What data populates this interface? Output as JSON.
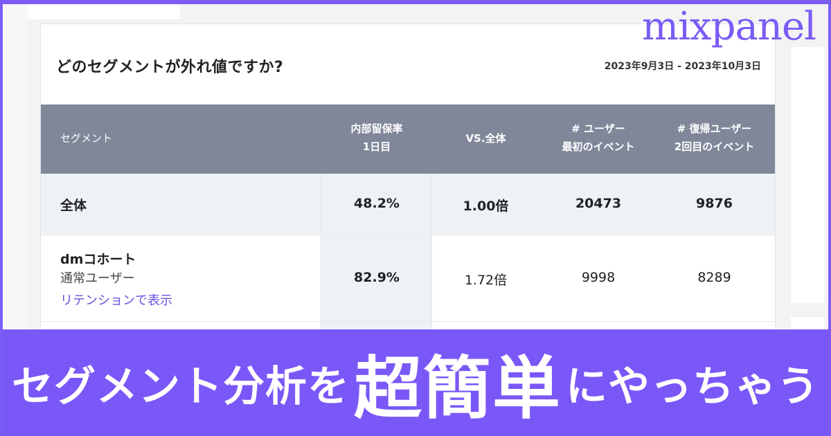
{
  "brand": {
    "logo": "mixpanel",
    "accent_color": "#7b5cf5",
    "banner_color": "#7a58f8",
    "header_color": "#7f8799"
  },
  "report": {
    "title": "どのセグメントが外れ値ですか?",
    "date_range": "2023年9月3日 - 2023年10月3日",
    "columns": {
      "segment": "セグメント",
      "retention_line1": "内部留保率",
      "retention_line2": "1日目",
      "vs_all": "VS.全体",
      "users_line1": "# ユーザー",
      "users_line2": "最初のイベント",
      "returning_line1": "# 復帰ユーザー",
      "returning_line2": "2回目のイベント"
    },
    "rows": [
      {
        "segment": "全体",
        "retention": "48.2%",
        "vs": "1.00倍",
        "users": "20473",
        "returning": "9876"
      },
      {
        "segment": "dmコホート",
        "sub": "通常ユーザー",
        "link": "リテンションで表示",
        "retention": "82.9%",
        "vs": "1.72倍",
        "users": "9998",
        "returning": "8289"
      }
    ]
  },
  "banner": {
    "part1": "セグメント分析を",
    "part2": "超簡単",
    "part3": "にやっちゃう"
  }
}
